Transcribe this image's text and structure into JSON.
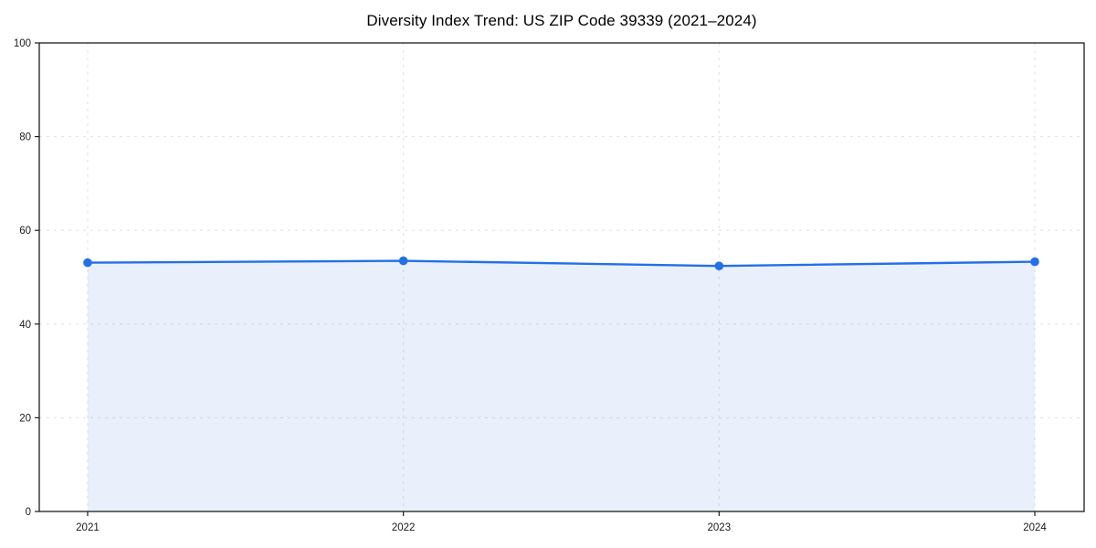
{
  "page": {
    "background": "#ffffff"
  },
  "chart_data": {
    "type": "line",
    "title": "Diversity Index Trend: US ZIP Code 39339 (2021–2024)",
    "categories": [
      "2021",
      "2022",
      "2023",
      "2024"
    ],
    "series": [
      {
        "name": "Diversity Index",
        "values": [
          53.1,
          53.5,
          52.4,
          53.3
        ]
      }
    ],
    "xlabel": "",
    "ylabel": "",
    "ylim": [
      0,
      100
    ],
    "yticks": [
      0,
      20,
      40,
      60,
      80,
      100
    ],
    "grid": "dashed, both axes",
    "legend_position": "none",
    "area_under_line": true,
    "colors": {
      "line": "#2470e4",
      "marker": "#2470e4",
      "area_fill": "#2470e4",
      "area_opacity": 0.1,
      "grid": "#e0e0e0",
      "spine": "#1c1c1c",
      "tick_text": "#1a1a1a",
      "title_text": "#000000"
    }
  }
}
